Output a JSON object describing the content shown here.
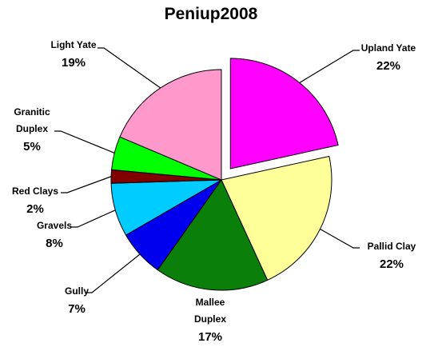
{
  "chart_data": {
    "type": "pie",
    "title": "Peniup2008",
    "categories": [
      "Upland Yate",
      "Pallid Clay",
      "Mallee Duplex",
      "Gully",
      "Gravels",
      "Red Clays",
      "Granitic Duplex",
      "Light Yate"
    ],
    "values": [
      22,
      22,
      17,
      7,
      8,
      2,
      5,
      19
    ],
    "value_labels": [
      "22%",
      "22%",
      "17%",
      "7%",
      "8%",
      "2%",
      "5%",
      "19%"
    ],
    "colors": [
      "#ff00ff",
      "#ffff99",
      "#0a800a",
      "#0000ee",
      "#00ccff",
      "#800000",
      "#00ff00",
      "#ff99cc"
    ],
    "exploded": [
      "Upland Yate"
    ]
  }
}
